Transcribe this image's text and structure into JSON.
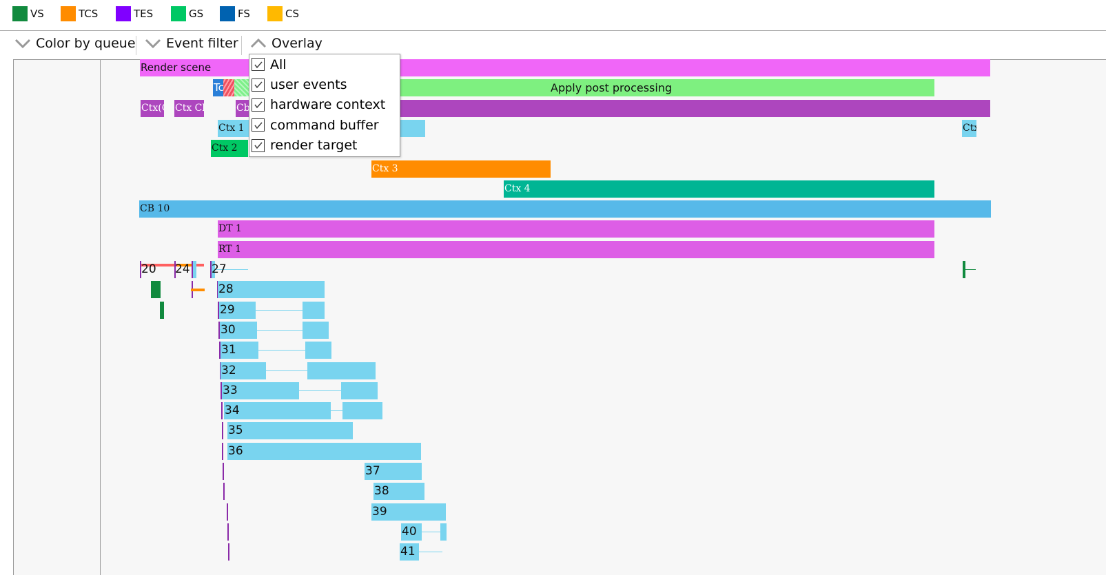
{
  "legend": [
    {
      "label": "VS",
      "color": "#118a3e"
    },
    {
      "label": "TCS",
      "color": "#ff8c00"
    },
    {
      "label": "TES",
      "color": "#8000ff"
    },
    {
      "label": "GS",
      "color": "#00c864"
    },
    {
      "label": "FS",
      "color": "#0062b0"
    },
    {
      "label": "CS",
      "color": "#ffb900"
    }
  ],
  "toolbar": {
    "color_by_queue": "Color by queue",
    "event_filter": "Event filter",
    "overlay": "Overlay"
  },
  "overlay_menu": [
    {
      "label": "All",
      "checked": true
    },
    {
      "label": "user events",
      "checked": true
    },
    {
      "label": "hardware context",
      "checked": true
    },
    {
      "label": "command buffer",
      "checked": true
    },
    {
      "label": "render target",
      "checked": true
    }
  ],
  "timeline": {
    "render_scene": "Render scene",
    "tc": "Tc",
    "apply_post": "Apply post processing",
    "ctx_a": "Ctx(C",
    "ctx_b": "Ctx Cb",
    "cb": "Cb",
    "ctx1": "Ctx 1",
    "ctx_right": "Ctx",
    "ctx2": "Ctx 2",
    "ctx3": "Ctx 3",
    "ctx4": "Ctx 4",
    "cb10": "CB 10",
    "dt1": "DT 1",
    "rt1": "RT 1",
    "ev20": "20",
    "ev24": "24",
    "ev27": "27",
    "events": [
      "28",
      "29",
      "30",
      "31",
      "32",
      "33",
      "34",
      "35",
      "36",
      "37",
      "38",
      "39",
      "40",
      "41"
    ]
  }
}
